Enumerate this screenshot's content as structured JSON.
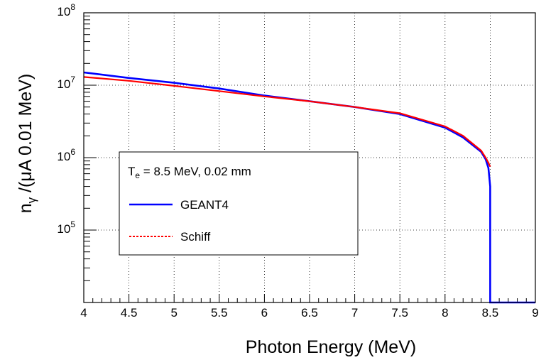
{
  "chart_data": {
    "type": "line",
    "xlabel": "Photon Energy (MeV)",
    "ylabel_parts": {
      "n": "n",
      "sub": "γ",
      "rest": " /(μA 0.01 MeV)"
    },
    "xlim": [
      4,
      9
    ],
    "ylim": [
      10000,
      100000000
    ],
    "yscale": "log",
    "grid": true,
    "x_ticks": [
      4,
      4.5,
      5,
      5.5,
      6,
      6.5,
      7,
      7.5,
      8,
      8.5,
      9
    ],
    "x_tick_labels": [
      "4",
      "4.5",
      "5",
      "5.5",
      "6",
      "6.5",
      "7",
      "7.5",
      "8",
      "8.5",
      "9"
    ],
    "y_ticks": [
      {
        "value": 100000,
        "base": "10",
        "exp": "5"
      },
      {
        "value": 1000000,
        "base": "10",
        "exp": "6"
      },
      {
        "value": 10000000,
        "base": "10",
        "exp": "7"
      },
      {
        "value": 100000000,
        "base": "10",
        "exp": "8"
      }
    ],
    "legend": {
      "header": {
        "main": "T",
        "sub": "e",
        "rest": " = 8.5 MeV, 0.02 mm"
      },
      "entries": [
        {
          "name": "GEANT4",
          "color": "#0000ff",
          "style": "solid"
        },
        {
          "name": "Schiff",
          "color": "#ff0000",
          "style": "dotted"
        }
      ]
    },
    "series": [
      {
        "name": "GEANT4",
        "color": "#0000ff",
        "x": [
          4.0,
          4.5,
          5.0,
          5.5,
          6.0,
          6.5,
          7.0,
          7.5,
          8.0,
          8.2,
          8.4,
          8.45,
          8.48,
          8.5
        ],
        "y": [
          15000000,
          12600000,
          10800000,
          9000000,
          7200000,
          6000000,
          5000000,
          4000000,
          2600000,
          1900000,
          1200000,
          950000,
          720000,
          400000
        ]
      },
      {
        "name": "Schiff",
        "color": "#ff0000",
        "x": [
          4.0,
          4.5,
          5.0,
          5.5,
          6.0,
          6.5,
          7.0,
          7.5,
          8.0,
          8.2,
          8.4,
          8.45,
          8.48,
          8.5
        ],
        "y": [
          13000000,
          11500000,
          9800000,
          8300000,
          7000000,
          6000000,
          5000000,
          4100000,
          2700000,
          2000000,
          1250000,
          1000000,
          850000,
          750000
        ]
      }
    ]
  }
}
